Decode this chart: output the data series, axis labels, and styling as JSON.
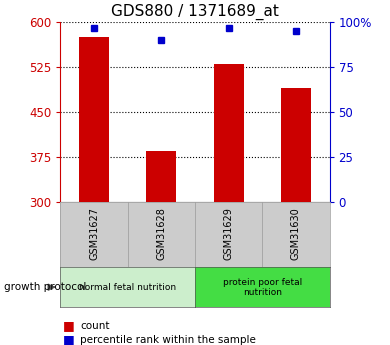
{
  "title": "GDS880 / 1371689_at",
  "samples": [
    "GSM31627",
    "GSM31628",
    "GSM31629",
    "GSM31630"
  ],
  "counts": [
    575,
    385,
    530,
    490
  ],
  "percentiles": [
    97,
    90,
    97,
    95
  ],
  "ylim_left": [
    300,
    600
  ],
  "ylim_right": [
    0,
    100
  ],
  "yticks_left": [
    300,
    375,
    450,
    525,
    600
  ],
  "yticks_right": [
    0,
    25,
    50,
    75,
    100
  ],
  "bar_color": "#cc0000",
  "dot_color": "#0000cc",
  "bar_width": 0.45,
  "groups": [
    {
      "label": "normal fetal nutrition",
      "samples": [
        0,
        1
      ],
      "color": "#cceecc"
    },
    {
      "label": "protein poor fetal\nnutrition",
      "samples": [
        2,
        3
      ],
      "color": "#44dd44"
    }
  ],
  "sample_box_color": "#cccccc",
  "group_label": "growth protocol",
  "legend_count_label": "count",
  "legend_pct_label": "percentile rank within the sample",
  "title_fontsize": 11,
  "axis_color_left": "#cc0000",
  "axis_color_right": "#0000cc"
}
